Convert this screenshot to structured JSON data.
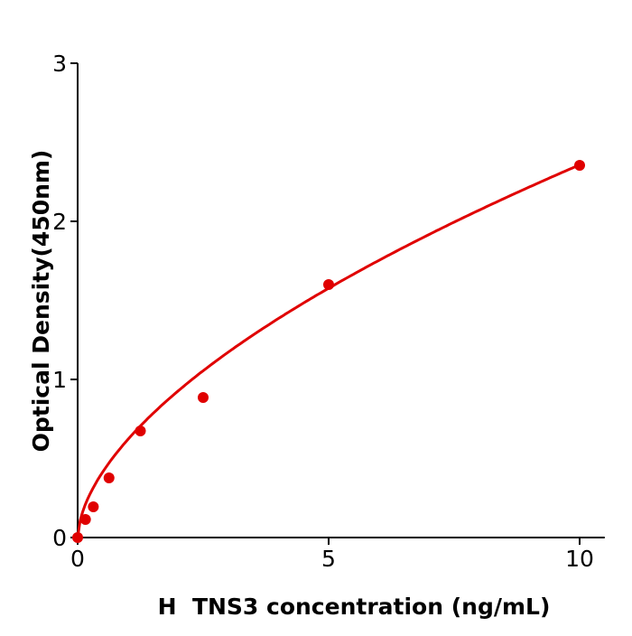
{
  "chart_data": {
    "type": "scatter",
    "title": "",
    "xlabel": "H  TNS3 concentration (ng/mL)",
    "ylabel": "Optical Density(450nm)",
    "xlim": [
      0,
      10.5
    ],
    "ylim": [
      0,
      3
    ],
    "xticks": [
      0,
      5,
      10
    ],
    "yticks": [
      0,
      1,
      2,
      3
    ],
    "grid": false,
    "color": "#e00000",
    "series": [
      {
        "x": [
          0,
          0.156,
          0.3125,
          0.625,
          1.25,
          2.5,
          5,
          10
        ],
        "y": [
          0.0,
          0.114,
          0.194,
          0.377,
          0.674,
          0.886,
          1.6,
          2.354
        ]
      }
    ],
    "fit_curve": {
      "type": "power",
      "a": 0.62,
      "b": 0.58
    }
  }
}
